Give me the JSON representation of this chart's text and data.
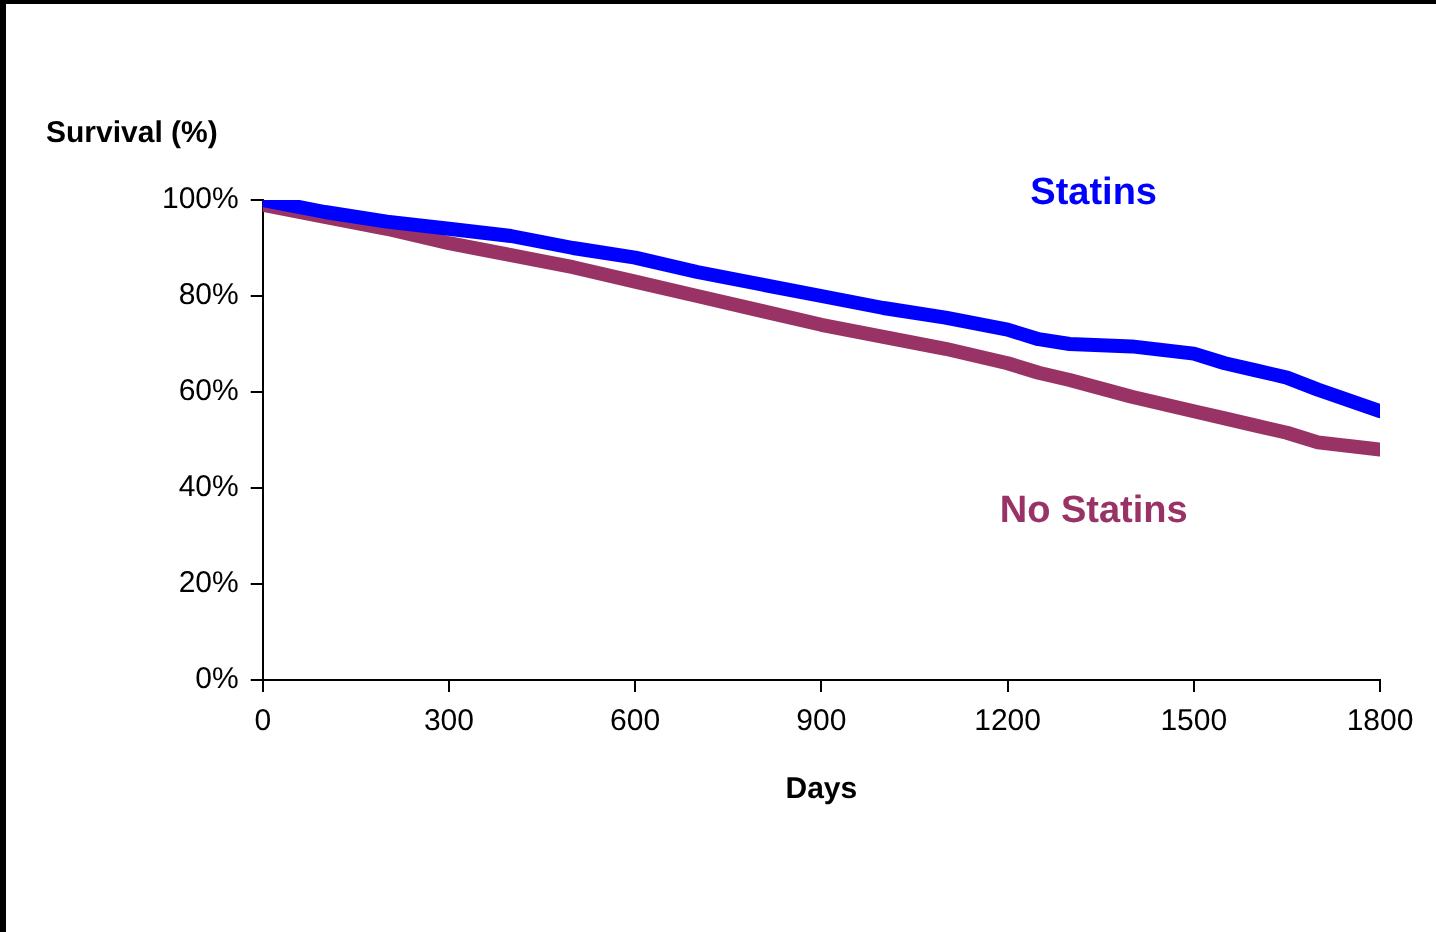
{
  "chart_data": {
    "type": "line",
    "ylabel": "Survival (%)",
    "xlabel": "Days",
    "xlim": [
      0,
      1800
    ],
    "xticks": [
      0,
      300,
      600,
      900,
      1200,
      1500,
      1800
    ],
    "ylim": [
      0,
      100
    ],
    "yticks": [
      {
        "value": 0,
        "label": "0%"
      },
      {
        "value": 20,
        "label": "20%"
      },
      {
        "value": 40,
        "label": "40%"
      },
      {
        "value": 60,
        "label": "60%"
      },
      {
        "value": 80,
        "label": "80%"
      },
      {
        "value": 100,
        "label": "100%"
      }
    ],
    "grid": false,
    "legend": false,
    "marker": "none",
    "x": [
      0,
      100,
      200,
      300,
      400,
      500,
      600,
      700,
      800,
      900,
      1000,
      1100,
      1200,
      1250,
      1300,
      1400,
      1500,
      1550,
      1600,
      1650,
      1700,
      1800
    ],
    "series": [
      {
        "name": "Statins",
        "color": "#0000ff",
        "values": [
          100,
          97.5,
          95.5,
          94,
          92.5,
          90,
          88,
          85,
          82.5,
          80,
          77.5,
          75.5,
          73,
          71,
          70,
          69.5,
          68,
          66,
          64.5,
          63,
          60.5,
          56
        ]
      },
      {
        "name": "No Statins",
        "color": "#993366",
        "values": [
          99,
          96.5,
          94,
          91,
          88.5,
          86,
          83,
          80,
          77,
          74,
          71.5,
          69,
          66,
          64,
          62.5,
          59,
          56,
          54.5,
          53,
          51.5,
          49.5,
          48
        ]
      }
    ]
  }
}
